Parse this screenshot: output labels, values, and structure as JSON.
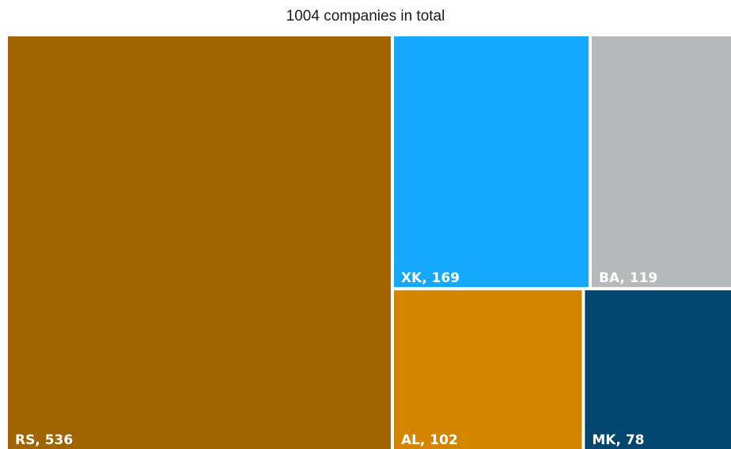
{
  "chart_data": {
    "type": "treemap",
    "title": "1004 companies in total",
    "items": [
      {
        "label": "RS, 536",
        "name": "RS",
        "value": 536,
        "color": "#A06400"
      },
      {
        "label": "XK, 169",
        "name": "XK",
        "value": 169,
        "color": "#14A8FF"
      },
      {
        "label": "BA, 119",
        "name": "BA",
        "value": 119,
        "color": "#B7B8BB"
      },
      {
        "label": "AL, 102",
        "name": "AL",
        "value": 102,
        "color": "#D48500"
      },
      {
        "label": "MK, 78",
        "name": "MK",
        "value": 78,
        "color": "#00466E"
      }
    ]
  }
}
